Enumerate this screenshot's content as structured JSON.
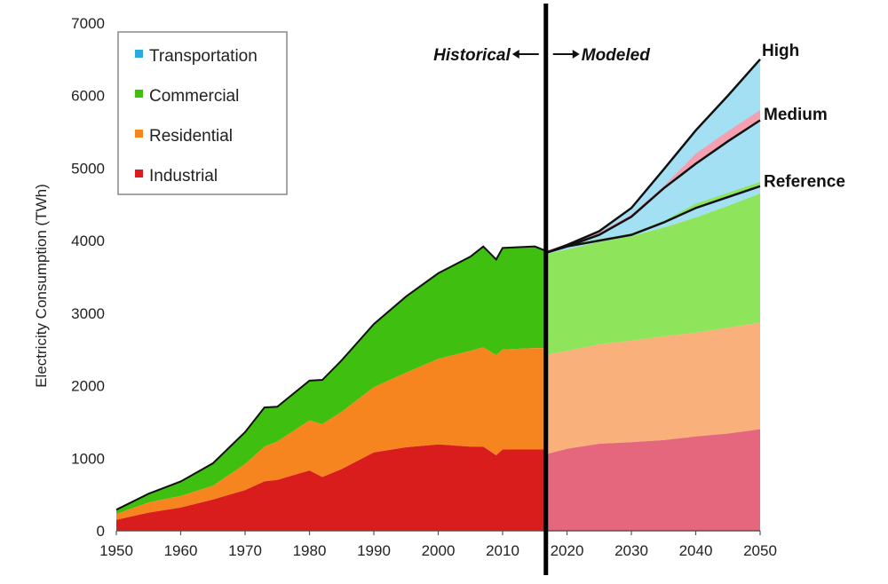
{
  "chart_data": {
    "type": "area",
    "title": "",
    "ylabel": "Electricity Consumption (TWh)",
    "xlabel": "",
    "xlim": [
      1950,
      2050
    ],
    "ylim": [
      0,
      7000
    ],
    "x_ticks": [
      "1950",
      "1960",
      "1970",
      "1980",
      "1990",
      "2000",
      "2010",
      "2020",
      "2030",
      "2040",
      "2050"
    ],
    "y_ticks": [
      "0",
      "1000",
      "2000",
      "3000",
      "4000",
      "5000",
      "6000",
      "7000"
    ],
    "divider_year": 2017,
    "region_labels": {
      "historical": "Historical",
      "modeled": "Modeled"
    },
    "legend": {
      "placement": "top-left",
      "entries": [
        {
          "name": "Transportation",
          "color": "#29abe2"
        },
        {
          "name": "Commercial",
          "color": "#3fbf0f"
        },
        {
          "name": "Residential",
          "color": "#f7851f"
        },
        {
          "name": "Industrial",
          "color": "#d91c1c"
        }
      ]
    },
    "historical": {
      "x": [
        1950,
        1955,
        1960,
        1965,
        1970,
        1973,
        1975,
        1980,
        1982,
        1985,
        1990,
        1995,
        2000,
        2005,
        2007,
        2009,
        2010,
        2015,
        2017
      ],
      "industrial": [
        150,
        250,
        320,
        430,
        560,
        680,
        700,
        830,
        740,
        850,
        1080,
        1150,
        1190,
        1160,
        1160,
        1040,
        1120,
        1120,
        1120
      ],
      "residential": [
        230,
        390,
        480,
        620,
        920,
        1160,
        1230,
        1520,
        1470,
        1640,
        1980,
        2180,
        2370,
        2480,
        2530,
        2420,
        2500,
        2520,
        2520
      ],
      "commercial": [
        290,
        510,
        680,
        930,
        1360,
        1700,
        1710,
        2070,
        2080,
        2350,
        2850,
        3230,
        3550,
        3780,
        3920,
        3740,
        3900,
        3920,
        3850
      ]
    },
    "modeled": {
      "x": [
        2017,
        2020,
        2025,
        2030,
        2035,
        2040,
        2045,
        2050
      ],
      "industrial": [
        1060,
        1130,
        1200,
        1220,
        1250,
        1300,
        1340,
        1400
      ],
      "residential": [
        2430,
        2480,
        2570,
        2620,
        2680,
        2730,
        2800,
        2870
      ],
      "commercial": [
        3820,
        3880,
        3980,
        4060,
        4180,
        4320,
        4480,
        4650
      ],
      "reference": [
        3840,
        3920,
        4000,
        4080,
        4250,
        4450,
        4600,
        4750
      ],
      "medium": [
        3840,
        3920,
        4080,
        4330,
        4720,
        5060,
        5370,
        5660
      ],
      "high": [
        3840,
        3940,
        4130,
        4450,
        4980,
        5520,
        6000,
        6500
      ]
    },
    "scenario_labels": [
      "High",
      "Medium",
      "Reference"
    ],
    "colors": {
      "transportation": "#29abe2",
      "transportation_modeled": "#a4e0f4",
      "commercial": "#3fbf0f",
      "commercial_modeled": "#8ee45a",
      "residential": "#f7851f",
      "residential_modeled": "#f9b07a",
      "industrial": "#d91c1c",
      "industrial_modeled": "#e5677d"
    }
  }
}
